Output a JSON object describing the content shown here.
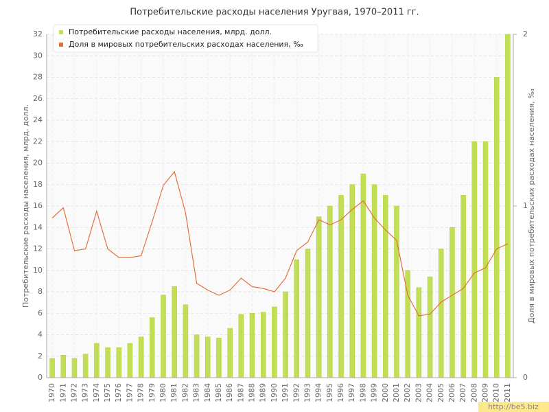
{
  "chart_data": {
    "type": "bar",
    "title": "Потребительские расходы населения Уругвая, 1970–2011 гг.",
    "y_label": "Потребительские расходы населения, млрд. долл.",
    "y2_label": "Доля в мировых потребительских расходах населения, ‰",
    "categories": [
      "1970",
      "1971",
      "1972",
      "1973",
      "1974",
      "1975",
      "1976",
      "1977",
      "1978",
      "1979",
      "1980",
      "1981",
      "1982",
      "1983",
      "1984",
      "1985",
      "1986",
      "1987",
      "1988",
      "1989",
      "1990",
      "1991",
      "1992",
      "1993",
      "1994",
      "1995",
      "1996",
      "1997",
      "1998",
      "1999",
      "2000",
      "2001",
      "2002",
      "2003",
      "2004",
      "2005",
      "2006",
      "2007",
      "2008",
      "2009",
      "2010",
      "2011"
    ],
    "series": [
      {
        "name": "Потребительские расходы населения, млрд. долл.",
        "type": "bar",
        "color": "#c2de55",
        "values": [
          1.8,
          2.1,
          1.8,
          2.2,
          3.2,
          2.8,
          2.8,
          3.2,
          3.8,
          5.6,
          7.7,
          8.5,
          6.8,
          4.0,
          3.8,
          3.7,
          4.6,
          5.9,
          6.0,
          6.1,
          6.6,
          8.0,
          11.0,
          12.0,
          15.0,
          16.0,
          17.0,
          18.0,
          19.0,
          18.0,
          17.0,
          16.0,
          10.0,
          8.4,
          9.4,
          12.0,
          14.0,
          17.0,
          22.0,
          22.0,
          28.0,
          32.0
        ]
      },
      {
        "name": "Доля в мировых потребительских расходах населения, ‰",
        "type": "line",
        "axis": "y2",
        "color": "#e2703f",
        "values": [
          0.93,
          0.99,
          0.74,
          0.75,
          0.97,
          0.75,
          0.7,
          0.7,
          0.71,
          0.91,
          1.12,
          1.2,
          0.96,
          0.55,
          0.51,
          0.48,
          0.51,
          0.58,
          0.53,
          0.52,
          0.5,
          0.58,
          0.74,
          0.79,
          0.92,
          0.89,
          0.92,
          0.98,
          1.03,
          0.93,
          0.86,
          0.8,
          0.48,
          0.36,
          0.37,
          0.44,
          0.48,
          0.52,
          0.61,
          0.64,
          0.75,
          0.78
        ]
      }
    ],
    "ylim": [
      0,
      32
    ],
    "yticks": [
      0,
      2,
      4,
      6,
      8,
      10,
      12,
      14,
      16,
      18,
      20,
      22,
      24,
      26,
      28,
      30,
      32
    ],
    "y2lim": [
      0,
      2
    ],
    "y2ticks": [
      0,
      1,
      2
    ],
    "grid": true,
    "legend": "top-left"
  },
  "watermark": "http://be5.biz"
}
